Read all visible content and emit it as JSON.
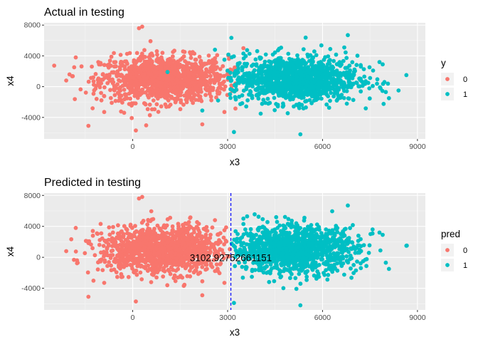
{
  "chart_data": [
    {
      "type": "scatter",
      "title": "Actual in testing",
      "xlabel": "x3",
      "ylabel": "x4",
      "xlim": [
        -2800,
        9250
      ],
      "ylim": [
        -6800,
        8300
      ],
      "xticks": [
        0,
        3000,
        6000,
        9000
      ],
      "xtick_labels": [
        "0",
        "3000",
        "6000",
        "9000"
      ],
      "yticks": [
        -4000,
        0,
        4000,
        8000
      ],
      "ytick_labels": [
        "-4000",
        "0",
        "4000",
        "8000"
      ],
      "grid": true,
      "legend": {
        "title": "y",
        "placement": "right",
        "entries": [
          "0",
          "1"
        ]
      },
      "series": [
        {
          "name": "0",
          "color": "#F8766D",
          "cluster": {
            "center": [
              1000,
              1000
            ],
            "spread": [
              1000,
              1500
            ],
            "count": 1200
          },
          "points": [
            [
              -2100,
              800
            ],
            [
              -1800,
              3800
            ],
            [
              -1400,
              -5100
            ],
            [
              -900,
              -3300
            ],
            [
              300,
              7800
            ],
            [
              200,
              7600
            ],
            [
              100,
              -5700
            ],
            [
              2200,
              -4900
            ],
            [
              2900,
              -3300
            ],
            [
              3300,
              2400
            ],
            [
              3000,
              2000
            ],
            [
              2700,
              800
            ],
            [
              3500,
              5000
            ]
          ]
        },
        {
          "name": "1",
          "color": "#00BFC4",
          "cluster": {
            "center": [
              5100,
              1000
            ],
            "spread": [
              1000,
              1500
            ],
            "count": 1200
          },
          "points": [
            [
              1100,
              1900
            ],
            [
              2600,
              4800
            ],
            [
              2900,
              3500
            ],
            [
              2700,
              -1800
            ],
            [
              2200,
              -3100
            ],
            [
              3500,
              4300
            ],
            [
              3200,
              -5900
            ],
            [
              8650,
              1500
            ],
            [
              7900,
              2900
            ],
            [
              7800,
              3200
            ],
            [
              8100,
              -1500
            ],
            [
              8000,
              -700
            ],
            [
              5300,
              -6200
            ],
            [
              6800,
              6700
            ]
          ]
        }
      ]
    },
    {
      "type": "scatter",
      "title": "Predicted in testing",
      "xlabel": "x3",
      "ylabel": "x4",
      "xlim": [
        -2800,
        9250
      ],
      "ylim": [
        -6800,
        8300
      ],
      "xticks": [
        0,
        3000,
        6000,
        9000
      ],
      "xtick_labels": [
        "0",
        "3000",
        "6000",
        "9000"
      ],
      "yticks": [
        -4000,
        0,
        4000,
        8000
      ],
      "ytick_labels": [
        "-4000",
        "0",
        "4000",
        "8000"
      ],
      "grid": true,
      "legend": {
        "title": "pred",
        "placement": "right",
        "entries": [
          "0",
          "1"
        ]
      },
      "threshold": {
        "x": 3102.92752661151,
        "label": "3102.92752661151",
        "color": "#0000FF",
        "style": "dashed"
      },
      "series": [
        {
          "name": "0",
          "color": "#F8766D",
          "cluster": {
            "center": [
              1000,
              1000
            ],
            "spread": [
              1000,
              1500
            ],
            "count": 1250
          },
          "points": [
            [
              -2100,
              800
            ],
            [
              -1800,
              3800
            ],
            [
              -1400,
              -5100
            ],
            [
              -900,
              -3300
            ],
            [
              300,
              7800
            ],
            [
              200,
              7600
            ],
            [
              100,
              -5700
            ],
            [
              1100,
              1900
            ],
            [
              2200,
              -4900
            ],
            [
              2200,
              -3100
            ],
            [
              2900,
              -3300
            ],
            [
              2700,
              -1800
            ],
            [
              2900,
              3500
            ],
            [
              2600,
              4800
            ]
          ]
        },
        {
          "name": "1",
          "color": "#00BFC4",
          "cluster": {
            "center": [
              5100,
              1000
            ],
            "spread": [
              1000,
              1500
            ],
            "count": 1200
          },
          "points": [
            [
              3500,
              5000
            ],
            [
              3500,
              4300
            ],
            [
              3200,
              -5900
            ],
            [
              3300,
              2400
            ],
            [
              8650,
              1500
            ],
            [
              7900,
              2900
            ],
            [
              7800,
              3200
            ],
            [
              8100,
              -1500
            ],
            [
              8000,
              -700
            ],
            [
              5300,
              -6200
            ],
            [
              6800,
              6700
            ]
          ]
        }
      ]
    }
  ]
}
